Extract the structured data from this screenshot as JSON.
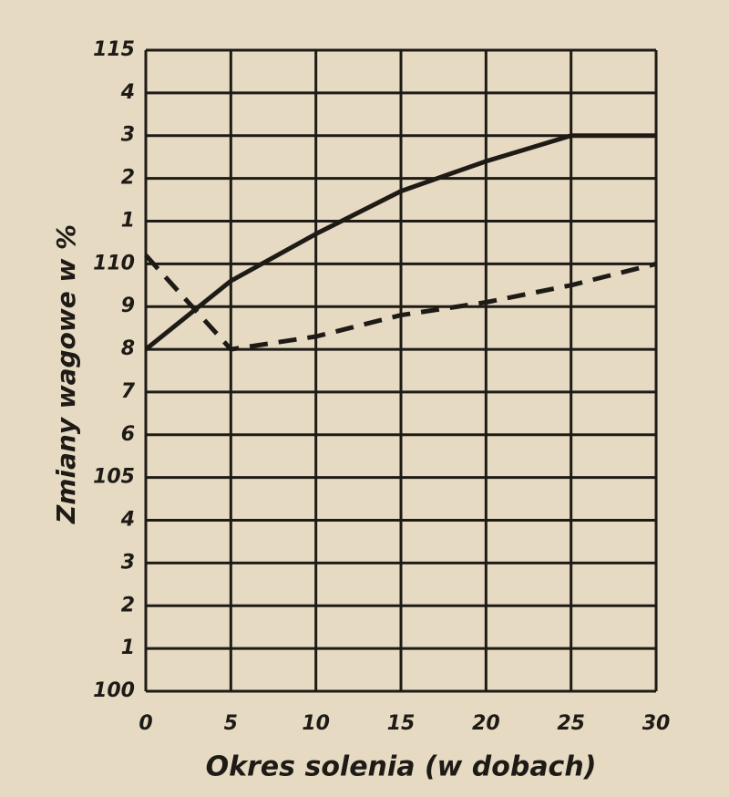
{
  "chart_data": {
    "type": "line",
    "y_label": "Zmiany wagowe w %",
    "x_label": "Okres solenia (w dobach)",
    "x": [
      0,
      5,
      10,
      15,
      20,
      25,
      30
    ],
    "series": [
      {
        "color": "#1e1a16",
        "style": "solid",
        "values": [
          108,
          109.6,
          110.7,
          111.7,
          112.4,
          113,
          113
        ]
      },
      {
        "color": "#1e1a16",
        "style": "dashed",
        "values": [
          110.2,
          108,
          108.3,
          108.8,
          109.1,
          109.5,
          110
        ]
      }
    ],
    "xlim": [
      0,
      30
    ],
    "xticks": [
      0,
      5,
      10,
      15,
      20,
      25,
      30
    ],
    "ylim": [
      100,
      115
    ],
    "yticks": [
      100,
      {
        "value": 101,
        "label": "1"
      },
      {
        "value": 102,
        "label": "2"
      },
      {
        "value": 103,
        "label": "3"
      },
      {
        "value": 104,
        "label": "4"
      },
      {
        "value": 105,
        "label": "105"
      },
      {
        "value": 106,
        "label": "6"
      },
      {
        "value": 107,
        "label": "7"
      },
      {
        "value": 108,
        "label": "8"
      },
      {
        "value": 109,
        "label": "9"
      },
      110,
      {
        "value": 111,
        "label": "1"
      },
      {
        "value": 112,
        "label": "2"
      },
      {
        "value": 113,
        "label": "3"
      },
      {
        "value": 114,
        "label": "4"
      },
      115
    ],
    "grid": true
  }
}
